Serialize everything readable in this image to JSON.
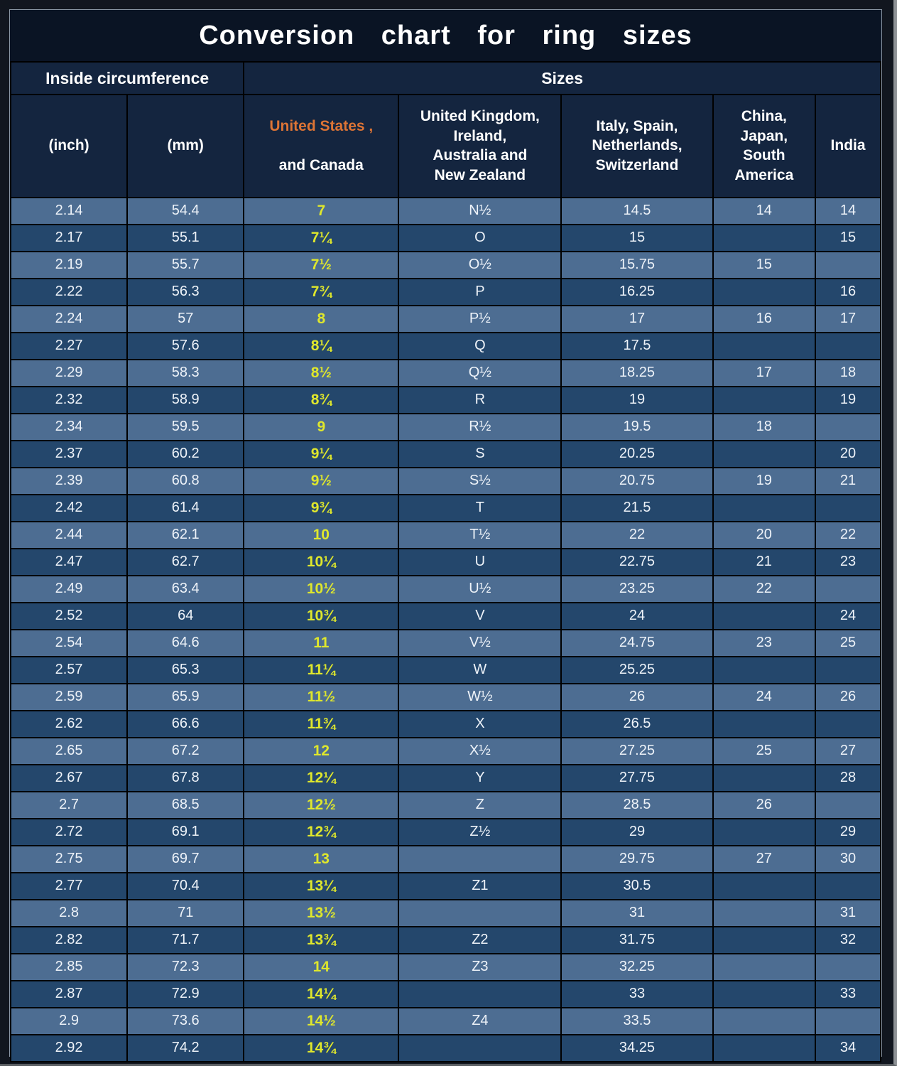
{
  "chart_data": {
    "type": "table",
    "title": "Conversion chart for ring sizes",
    "group_headers": [
      "Inside circumference",
      "Sizes"
    ],
    "columns": [
      "(inch)",
      "(mm)",
      {
        "accent": "United States ,",
        "rest": "and Canada"
      },
      "United Kingdom,\nIreland,\nAustralia and\nNew Zealand",
      "Italy, Spain,\nNetherlands,\nSwitzerland",
      "China,\nJapan,\nSouth\nAmerica",
      "India"
    ],
    "column_keys": [
      "inch",
      "mm",
      "us_canada",
      "uk_ireland_australia_nz",
      "italy_spain_netherlands_switzerland",
      "china_japan_south_america",
      "india"
    ],
    "rows": [
      [
        "2.14",
        "54.4",
        "7",
        "N½",
        "14.5",
        "14",
        "14"
      ],
      [
        "2.17",
        "55.1",
        "7¼",
        "O",
        "15",
        "",
        "15"
      ],
      [
        "2.19",
        "55.7",
        "7½",
        "O½",
        "15.75",
        "15",
        ""
      ],
      [
        "2.22",
        "56.3",
        "7¾",
        "P",
        "16.25",
        "",
        "16"
      ],
      [
        "2.24",
        "57",
        "8",
        "P½",
        "17",
        "16",
        "17"
      ],
      [
        "2.27",
        "57.6",
        "8¼",
        "Q",
        "17.5",
        "",
        ""
      ],
      [
        "2.29",
        "58.3",
        "8½",
        "Q½",
        "18.25",
        "17",
        "18"
      ],
      [
        "2.32",
        "58.9",
        "8¾",
        "R",
        "19",
        "",
        "19"
      ],
      [
        "2.34",
        "59.5",
        "9",
        "R½",
        "19.5",
        "18",
        ""
      ],
      [
        "2.37",
        "60.2",
        "9¼",
        "S",
        "20.25",
        "",
        "20"
      ],
      [
        "2.39",
        "60.8",
        "9½",
        "S½",
        "20.75",
        "19",
        "21"
      ],
      [
        "2.42",
        "61.4",
        "9¾",
        "T",
        "21.5",
        "",
        ""
      ],
      [
        "2.44",
        "62.1",
        "10",
        "T½",
        "22",
        "20",
        "22"
      ],
      [
        "2.47",
        "62.7",
        "10¼",
        "U",
        "22.75",
        "21",
        "23"
      ],
      [
        "2.49",
        "63.4",
        "10½",
        "U½",
        "23.25",
        "22",
        ""
      ],
      [
        "2.52",
        "64",
        "10¾",
        "V",
        "24",
        "",
        "24"
      ],
      [
        "2.54",
        "64.6",
        "11",
        "V½",
        "24.75",
        "23",
        "25"
      ],
      [
        "2.57",
        "65.3",
        "11¼",
        "W",
        "25.25",
        "",
        ""
      ],
      [
        "2.59",
        "65.9",
        "11½",
        "W½",
        "26",
        "24",
        "26"
      ],
      [
        "2.62",
        "66.6",
        "11¾",
        "X",
        "26.5",
        "",
        ""
      ],
      [
        "2.65",
        "67.2",
        "12",
        "X½",
        "27.25",
        "25",
        "27"
      ],
      [
        "2.67",
        "67.8",
        "12¼",
        "Y",
        "27.75",
        "",
        "28"
      ],
      [
        "2.7",
        "68.5",
        "12½",
        "Z",
        "28.5",
        "26",
        ""
      ],
      [
        "2.72",
        "69.1",
        "12¾",
        "Z½",
        "29",
        "",
        "29"
      ],
      [
        "2.75",
        "69.7",
        "13",
        "",
        "29.75",
        "27",
        "30"
      ],
      [
        "2.77",
        "70.4",
        "13¼",
        "Z1",
        "30.5",
        "",
        ""
      ],
      [
        "2.8",
        "71",
        "13½",
        "",
        "31",
        "",
        "31"
      ],
      [
        "2.82",
        "71.7",
        "13¾",
        "Z2",
        "31.75",
        "",
        "32"
      ],
      [
        "2.85",
        "72.3",
        "14",
        "Z3",
        "32.25",
        "",
        ""
      ],
      [
        "2.87",
        "72.9",
        "14¼",
        "",
        "33",
        "",
        "33"
      ],
      [
        "2.9",
        "73.6",
        "14½",
        "Z4",
        "33.5",
        "",
        ""
      ],
      [
        "2.92",
        "74.2",
        "14¾",
        "",
        "34.25",
        "",
        "34"
      ]
    ],
    "colors": {
      "title_bg": "#0a1424",
      "header_bg": "#14253f",
      "row_light": "#4d6d92",
      "row_dark": "#24476c",
      "cell_text": "#eef3f9",
      "us_value": "#dfe72c",
      "us_accent": "#dd7435"
    },
    "layout": {
      "legend_position": "none",
      "grid": "all-cell-borders",
      "striped_rows": true
    }
  }
}
